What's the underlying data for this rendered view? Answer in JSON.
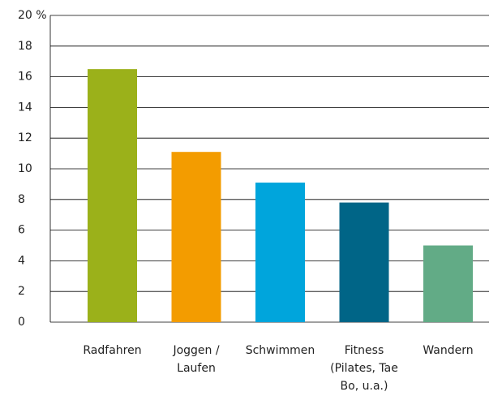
{
  "chart_data": {
    "type": "bar",
    "categories": [
      "Radfahren",
      "Joggen / Laufen",
      "Schwimmen",
      "Fitness (Pilates, Tae Bo, u.a.)",
      "Wandern"
    ],
    "values": [
      16.5,
      11.1,
      9.1,
      7.8,
      5.0
    ],
    "colors": [
      "#9bb11a",
      "#f39c00",
      "#00a5dc",
      "#006587",
      "#62ab86"
    ],
    "ylim": [
      0,
      20
    ],
    "yticks": [
      0,
      2,
      4,
      6,
      8,
      10,
      12,
      14,
      16,
      18,
      {
        "value": 20,
        "label": "20 %"
      }
    ],
    "grid": true
  }
}
